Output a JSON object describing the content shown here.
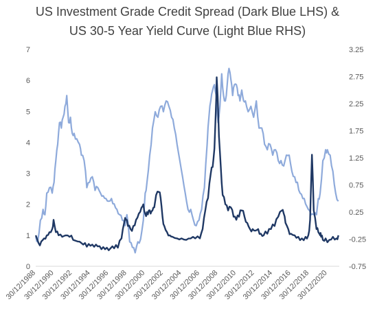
{
  "chart_data": {
    "type": "line",
    "title": "US Investment Grade Credit Spread (Dark Blue LHS) &",
    "subtitle": "US 30-5 Year Yield Curve (Light Blue RHS)",
    "xlabel": "",
    "ylabel": "",
    "grid": false,
    "legend": "none",
    "x_tick_labels": [
      "30/12/1988",
      "30/12/1990",
      "30/12/1992",
      "30/12/1994",
      "30/12/1996",
      "30/12/1998",
      "30/12/2000",
      "30/12/2002",
      "30/12/2004",
      "30/12/2006",
      "30/12/2008",
      "30/12/2010",
      "30/12/2012",
      "30/12/2014",
      "30/12/2016",
      "30/12/2018",
      "30/12/2020"
    ],
    "xlim": [
      1988.99,
      2022.3
    ],
    "left_axis": {
      "ylim": [
        0,
        7
      ],
      "ticks": [
        "0",
        "1",
        "2",
        "3",
        "4",
        "5",
        "6",
        "7"
      ]
    },
    "right_axis": {
      "ylim": [
        -0.75,
        3.25
      ],
      "ticks": [
        "-0.75",
        "-0.25",
        "0.25",
        "0.75",
        "1.25",
        "1.75",
        "2.25",
        "2.75",
        "3.25"
      ]
    },
    "series": [
      {
        "axis": "left",
        "color": "#1f3864",
        "x": [
          1989.0,
          1989.3,
          1989.6,
          1989.9,
          1990.2,
          1990.5,
          1990.8,
          1990.95,
          1991.2,
          1991.5,
          1991.9,
          1992.3,
          1992.7,
          1993.1,
          1993.6,
          1994.0,
          1994.4,
          1994.8,
          1995.2,
          1995.6,
          1996.0,
          1996.4,
          1996.8,
          1997.2,
          1997.6,
          1998.0,
          1998.4,
          1998.7,
          1998.9,
          1999.1,
          1999.4,
          1999.7,
          2000.0,
          2000.3,
          2000.6,
          2000.8,
          2001.0,
          2001.2,
          2001.4,
          2001.6,
          2001.8,
          2002.0,
          2002.2,
          2002.5,
          2002.7,
          2002.9,
          2003.1,
          2003.4,
          2003.7,
          2004.0,
          2004.5,
          2005.0,
          2005.5,
          2006.0,
          2006.5,
          2007.0,
          2007.3,
          2007.6,
          2007.9,
          2008.2,
          2008.4,
          2008.6,
          2008.75,
          2008.85,
          2008.95,
          2009.1,
          2009.3,
          2009.5,
          2009.8,
          2010.1,
          2010.4,
          2010.7,
          2011.0,
          2011.3,
          2011.6,
          2011.9,
          2012.2,
          2012.5,
          2012.8,
          2013.1,
          2013.4,
          2013.7,
          2014.0,
          2014.4,
          2014.8,
          2015.2,
          2015.6,
          2016.0,
          2016.2,
          2016.4,
          2016.7,
          2017.0,
          2017.4,
          2017.8,
          2018.2,
          2018.6,
          2018.9,
          2019.1,
          2019.3,
          2019.5,
          2019.8,
          2020.0,
          2020.2,
          2020.3,
          2020.5,
          2020.8,
          2021.2,
          2021.6,
          2022.0,
          2022.2
        ],
        "y": [
          1.0,
          0.75,
          0.8,
          0.9,
          1.0,
          1.1,
          1.2,
          1.5,
          1.1,
          1.0,
          0.95,
          1.0,
          0.95,
          0.85,
          0.8,
          0.75,
          0.75,
          0.72,
          0.7,
          0.7,
          0.65,
          0.62,
          0.6,
          0.58,
          0.58,
          0.6,
          0.9,
          1.4,
          1.5,
          1.3,
          1.2,
          1.3,
          1.5,
          1.7,
          1.9,
          2.0,
          1.7,
          1.75,
          1.8,
          1.7,
          1.8,
          1.9,
          2.3,
          2.4,
          2.2,
          1.6,
          1.3,
          1.1,
          1.0,
          0.95,
          0.9,
          0.9,
          0.85,
          0.9,
          0.9,
          0.9,
          1.2,
          1.8,
          2.2,
          3.0,
          3.2,
          3.8,
          5.0,
          6.1,
          5.5,
          4.2,
          3.2,
          2.3,
          2.0,
          1.8,
          1.9,
          1.6,
          1.5,
          1.6,
          1.8,
          1.6,
          1.4,
          1.2,
          1.2,
          1.15,
          1.2,
          1.05,
          1.0,
          1.05,
          1.2,
          1.3,
          1.6,
          1.8,
          1.7,
          1.4,
          1.2,
          1.05,
          1.0,
          0.95,
          0.9,
          0.95,
          1.0,
          1.5,
          3.6,
          1.8,
          1.2,
          1.1,
          1.0,
          0.95,
          0.85,
          0.9,
          0.85,
          0.95,
          0.9,
          1.0
        ]
      },
      {
        "axis": "right",
        "color": "#8eaadb",
        "x": [
          1989.0,
          1989.2,
          1989.5,
          1989.8,
          1990.0,
          1990.2,
          1990.5,
          1990.8,
          1991.0,
          1991.2,
          1991.4,
          1991.6,
          1991.8,
          1992.0,
          1992.2,
          1992.4,
          1992.6,
          1992.8,
          1993.0,
          1993.2,
          1993.5,
          1993.8,
          1994.0,
          1994.3,
          1994.6,
          1994.9,
          1995.2,
          1995.5,
          1995.8,
          1996.1,
          1996.4,
          1996.7,
          1997.0,
          1997.3,
          1997.6,
          1997.9,
          1998.2,
          1998.5,
          1998.8,
          1999.0,
          1999.3,
          1999.6,
          1999.9,
          2000.2,
          2000.5,
          2000.8,
          2001.0,
          2001.2,
          2001.5,
          2001.8,
          2002.1,
          2002.4,
          2002.7,
          2003.0,
          2003.3,
          2003.6,
          2003.9,
          2004.2,
          2004.5,
          2004.8,
          2005.1,
          2005.4,
          2005.7,
          2006.0,
          2006.3,
          2006.6,
          2006.9,
          2007.2,
          2007.5,
          2007.8,
          2008.0,
          2008.2,
          2008.4,
          2008.6,
          2008.8,
          2009.0,
          2009.2,
          2009.4,
          2009.6,
          2009.8,
          2010.0,
          2010.2,
          2010.4,
          2010.6,
          2010.8,
          2011.0,
          2011.2,
          2011.4,
          2011.6,
          2011.8,
          2012.0,
          2012.3,
          2012.6,
          2012.9,
          2013.2,
          2013.5,
          2013.8,
          2014.1,
          2014.4,
          2014.7,
          2015.0,
          2015.3,
          2015.6,
          2015.9,
          2016.2,
          2016.5,
          2016.8,
          2017.1,
          2017.4,
          2017.7,
          2018.0,
          2018.3,
          2018.6,
          2018.9,
          2019.2,
          2019.5,
          2019.8,
          2020.0,
          2020.2,
          2020.5,
          2020.8,
          2021.0,
          2021.3,
          2021.6,
          2021.9,
          2022.2
        ],
        "y": [
          -0.2,
          -0.3,
          0.1,
          0.3,
          0.2,
          0.6,
          0.7,
          0.6,
          0.8,
          1.2,
          1.5,
          1.9,
          1.8,
          2.0,
          2.2,
          2.4,
          1.9,
          2.0,
          1.7,
          1.7,
          1.6,
          1.5,
          1.3,
          1.2,
          0.7,
          0.8,
          0.9,
          0.65,
          0.7,
          0.6,
          0.55,
          0.5,
          0.45,
          0.5,
          0.4,
          0.3,
          0.2,
          0.1,
          0.0,
          0.2,
          -0.3,
          -0.4,
          -0.5,
          -0.3,
          -0.25,
          0.1,
          0.6,
          0.8,
          1.3,
          1.8,
          2.1,
          2.0,
          2.2,
          2.1,
          2.3,
          2.2,
          2.0,
          1.8,
          1.5,
          1.2,
          0.9,
          0.6,
          0.3,
          0.3,
          0.1,
          0.0,
          0.1,
          0.3,
          0.7,
          1.5,
          2.0,
          2.3,
          2.5,
          2.6,
          2.4,
          1.9,
          2.2,
          2.8,
          2.4,
          2.3,
          2.6,
          2.9,
          2.7,
          2.4,
          2.6,
          2.6,
          2.4,
          2.3,
          2.5,
          2.3,
          2.3,
          2.1,
          2.2,
          2.0,
          2.3,
          1.8,
          1.8,
          1.5,
          1.4,
          1.5,
          1.3,
          1.4,
          1.2,
          1.2,
          1.1,
          1.3,
          1.3,
          1.0,
          0.9,
          0.8,
          0.6,
          0.5,
          0.4,
          0.3,
          0.2,
          0.2,
          0.2,
          0.5,
          0.6,
          1.2,
          1.4,
          1.4,
          1.3,
          1.0,
          0.6,
          0.45
        ]
      }
    ]
  }
}
